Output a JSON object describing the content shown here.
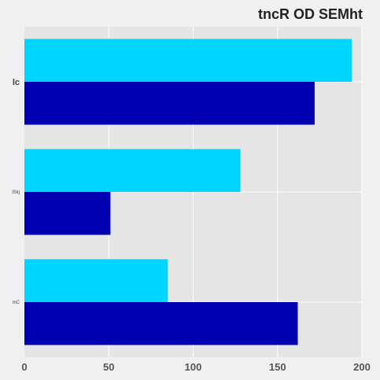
{
  "chart_data": {
    "type": "bar",
    "orientation": "horizontal",
    "title": "tncR OD SEMht",
    "xlabel": "",
    "ylabel": "",
    "categories": [
      "lc",
      "lSkj",
      "mC"
    ],
    "xlim": [
      0,
      200
    ],
    "xticks": [
      "0",
      "50",
      "100",
      "150",
      "200"
    ],
    "grid": true,
    "series": [
      {
        "color": "#00d5ff",
        "values": [
          194,
          128,
          85
        ]
      },
      {
        "color": "#0000b3",
        "values": [
          172,
          51,
          162
        ]
      }
    ]
  }
}
